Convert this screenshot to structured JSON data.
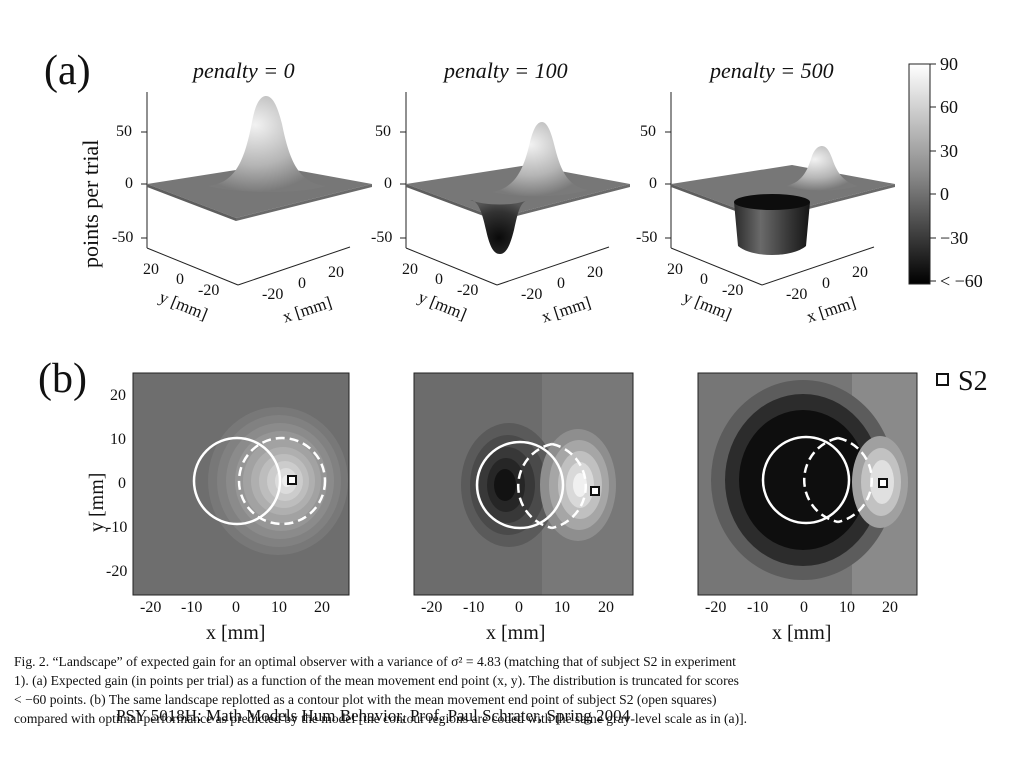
{
  "panel_a": {
    "label": "(a)",
    "titles": [
      "penalty = 0",
      "penalty = 100",
      "penalty = 500"
    ],
    "zlabel": "points per trial",
    "z_ticks": [
      "50",
      "0",
      "-50"
    ],
    "y_ticks": [
      "20",
      "0",
      "-20"
    ],
    "x_ticks": [
      "-20",
      "0",
      "20"
    ],
    "x_axis_label": "x [mm]",
    "y_axis_label": "y [mm]"
  },
  "colorbar": {
    "ticks": [
      "90",
      "60",
      "30",
      "0",
      "−30",
      "< −60"
    ]
  },
  "panel_b": {
    "label": "(b)",
    "ylabel": "y [mm]",
    "xlabel": "x [mm]",
    "y_ticks": [
      "20",
      "10",
      "0",
      "-10",
      "-20"
    ],
    "x_ticks": [
      "-20",
      "-10",
      "0",
      "10",
      "20"
    ],
    "legend": "S2"
  },
  "caption": {
    "line1": "Fig. 2.   “Landscape” of expected gain for an optimal observer with a variance of σ² = 4.83 (matching that of subject S2 in experiment",
    "line2": "1).   (a) Expected gain (in points per trial) as a function of the mean movement end point (x, y).   The distribution is truncated for scores",
    "line3": "< −60 points.   (b) The same landscape replotted as a contour plot with the mean movement end point of subject S2 (open squares)",
    "line4": "compared with optimal performance as predicted by the model [the contour regions are coded with the same gray-level scale as in (a)]."
  },
  "footer": "PSY 5018H: Math Models Hum Behavior, Prof. Paul Schrater, Spring 2004"
}
